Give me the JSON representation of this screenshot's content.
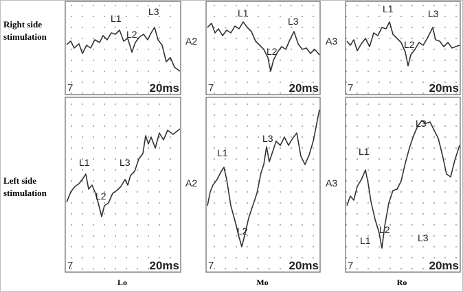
{
  "row_labels": [
    [
      "Right side",
      "stimulation"
    ],
    [
      "Left side",
      "stimulation"
    ]
  ],
  "column_labels": [
    "Lo",
    "Mo",
    "Ro"
  ],
  "panels": [
    {
      "peaks": [
        "L1",
        "L2",
        "L3"
      ],
      "marker": "7",
      "scale": "20ms"
    },
    {
      "side_label": "A2",
      "peaks": [
        "L1",
        "L2",
        "L3"
      ],
      "marker": "7",
      "scale": "20ms"
    },
    {
      "side_label": "A3",
      "peaks": [
        "L1",
        "L2",
        "L3"
      ],
      "marker": "7",
      "scale": "20ms"
    },
    {
      "peaks": [
        "L1",
        "L2",
        "L3"
      ],
      "marker": "7",
      "scale": "20ms"
    },
    {
      "side_label": "A2",
      "peaks": [
        "L1",
        "L2",
        "L3"
      ],
      "marker": "7",
      "scale": "20ms"
    },
    {
      "side_label": "A3",
      "peaks": [
        "L1",
        "L2",
        "L3",
        "L1",
        "L3"
      ],
      "marker": "7",
      "scale": "20ms"
    }
  ]
}
